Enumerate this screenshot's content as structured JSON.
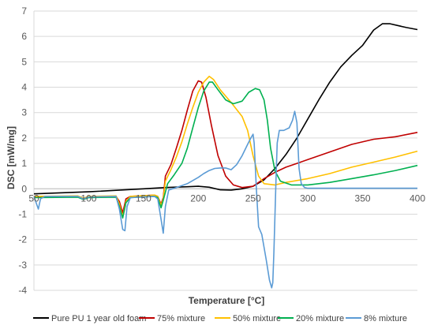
{
  "chart_data": {
    "type": "line",
    "title": "",
    "xlabel": "Temperature [°C]",
    "ylabel": "DSC [mW/mg]",
    "xlim": [
      50,
      400
    ],
    "ylim": [
      -4,
      7
    ],
    "xticks": [
      50,
      100,
      150,
      200,
      250,
      300,
      350,
      400
    ],
    "yticks": [
      -4,
      -3,
      -2,
      -1,
      0,
      1,
      2,
      3,
      4,
      5,
      6,
      7
    ],
    "grid": "horizontal",
    "legend_position": "bottom",
    "series": [
      {
        "name": "Pure PU 1 year old foam",
        "color": "#000000",
        "points": [
          [
            50,
            -0.2
          ],
          [
            100,
            -0.12
          ],
          [
            150,
            0.0
          ],
          [
            170,
            0.05
          ],
          [
            190,
            0.08
          ],
          [
            200,
            0.1
          ],
          [
            210,
            0.06
          ],
          [
            220,
            -0.04
          ],
          [
            230,
            -0.05
          ],
          [
            240,
            0.0
          ],
          [
            250,
            0.1
          ],
          [
            260,
            0.35
          ],
          [
            270,
            0.8
          ],
          [
            280,
            1.35
          ],
          [
            290,
            2.0
          ],
          [
            300,
            2.75
          ],
          [
            310,
            3.5
          ],
          [
            320,
            4.2
          ],
          [
            330,
            4.8
          ],
          [
            340,
            5.25
          ],
          [
            350,
            5.65
          ],
          [
            360,
            6.25
          ],
          [
            368,
            6.5
          ],
          [
            375,
            6.5
          ],
          [
            390,
            6.35
          ],
          [
            400,
            6.27
          ]
        ]
      },
      {
        "name": "75% mixture",
        "color": "#C00000",
        "points": [
          [
            50,
            -0.3
          ],
          [
            55,
            -0.32
          ],
          [
            60,
            -0.3
          ],
          [
            90,
            -0.3
          ],
          [
            95,
            -0.38
          ],
          [
            100,
            -0.32
          ],
          [
            125,
            -0.3
          ],
          [
            128,
            -0.5
          ],
          [
            131,
            -0.95
          ],
          [
            134,
            -0.4
          ],
          [
            138,
            -0.3
          ],
          [
            160,
            -0.25
          ],
          [
            163,
            -0.3
          ],
          [
            166,
            -0.6
          ],
          [
            168,
            -0.35
          ],
          [
            170,
            0.5
          ],
          [
            175,
            0.95
          ],
          [
            180,
            1.6
          ],
          [
            185,
            2.3
          ],
          [
            190,
            3.1
          ],
          [
            195,
            3.85
          ],
          [
            200,
            4.25
          ],
          [
            203,
            4.2
          ],
          [
            207,
            3.6
          ],
          [
            212,
            2.5
          ],
          [
            218,
            1.3
          ],
          [
            225,
            0.5
          ],
          [
            232,
            0.15
          ],
          [
            240,
            0.05
          ],
          [
            250,
            0.1
          ],
          [
            260,
            0.4
          ],
          [
            270,
            0.65
          ],
          [
            280,
            0.85
          ],
          [
            290,
            1.0
          ],
          [
            300,
            1.15
          ],
          [
            320,
            1.45
          ],
          [
            340,
            1.75
          ],
          [
            360,
            1.95
          ],
          [
            380,
            2.05
          ],
          [
            400,
            2.22
          ]
        ]
      },
      {
        "name": "50% mixture",
        "color": "#FFC000",
        "points": [
          [
            50,
            -0.3
          ],
          [
            90,
            -0.28
          ],
          [
            95,
            -0.37
          ],
          [
            100,
            -0.3
          ],
          [
            125,
            -0.28
          ],
          [
            128,
            -0.6
          ],
          [
            131,
            -1.1
          ],
          [
            134,
            -0.5
          ],
          [
            138,
            -0.3
          ],
          [
            160,
            -0.25
          ],
          [
            163,
            -0.3
          ],
          [
            166,
            -0.65
          ],
          [
            168,
            -0.4
          ],
          [
            170,
            0.3
          ],
          [
            175,
            0.75
          ],
          [
            180,
            1.25
          ],
          [
            185,
            1.85
          ],
          [
            190,
            2.55
          ],
          [
            195,
            3.2
          ],
          [
            200,
            3.8
          ],
          [
            205,
            4.2
          ],
          [
            210,
            4.43
          ],
          [
            214,
            4.3
          ],
          [
            220,
            3.9
          ],
          [
            230,
            3.4
          ],
          [
            240,
            2.85
          ],
          [
            245,
            2.3
          ],
          [
            250,
            1.3
          ],
          [
            255,
            0.5
          ],
          [
            260,
            0.2
          ],
          [
            270,
            0.15
          ],
          [
            280,
            0.25
          ],
          [
            300,
            0.4
          ],
          [
            320,
            0.6
          ],
          [
            340,
            0.85
          ],
          [
            360,
            1.05
          ],
          [
            380,
            1.25
          ],
          [
            400,
            1.48
          ]
        ]
      },
      {
        "name": "20% mixture",
        "color": "#00B050",
        "points": [
          [
            50,
            -0.35
          ],
          [
            90,
            -0.33
          ],
          [
            95,
            -0.42
          ],
          [
            100,
            -0.35
          ],
          [
            125,
            -0.33
          ],
          [
            128,
            -0.7
          ],
          [
            131,
            -1.15
          ],
          [
            134,
            -0.55
          ],
          [
            138,
            -0.35
          ],
          [
            160,
            -0.3
          ],
          [
            163,
            -0.35
          ],
          [
            166,
            -0.75
          ],
          [
            168,
            -0.45
          ],
          [
            172,
            0.2
          ],
          [
            178,
            0.55
          ],
          [
            185,
            1.0
          ],
          [
            190,
            1.6
          ],
          [
            195,
            2.4
          ],
          [
            200,
            3.2
          ],
          [
            205,
            3.85
          ],
          [
            210,
            4.2
          ],
          [
            213,
            4.2
          ],
          [
            218,
            3.9
          ],
          [
            225,
            3.5
          ],
          [
            232,
            3.35
          ],
          [
            240,
            3.45
          ],
          [
            246,
            3.8
          ],
          [
            252,
            3.95
          ],
          [
            256,
            3.9
          ],
          [
            260,
            3.5
          ],
          [
            263,
            2.7
          ],
          [
            266,
            1.6
          ],
          [
            270,
            0.7
          ],
          [
            275,
            0.3
          ],
          [
            285,
            0.15
          ],
          [
            300,
            0.15
          ],
          [
            320,
            0.25
          ],
          [
            340,
            0.4
          ],
          [
            360,
            0.55
          ],
          [
            380,
            0.72
          ],
          [
            400,
            0.92
          ]
        ]
      },
      {
        "name": "8% mixture",
        "color": "#5B9BD5",
        "points": [
          [
            50,
            -0.3
          ],
          [
            52,
            -0.55
          ],
          [
            54,
            -0.8
          ],
          [
            56,
            -0.4
          ],
          [
            60,
            -0.3
          ],
          [
            90,
            -0.3
          ],
          [
            95,
            -0.4
          ],
          [
            100,
            -0.32
          ],
          [
            125,
            -0.3
          ],
          [
            128,
            -0.8
          ],
          [
            131,
            -1.6
          ],
          [
            133,
            -1.65
          ],
          [
            135,
            -0.7
          ],
          [
            138,
            -0.35
          ],
          [
            160,
            -0.3
          ],
          [
            163,
            -0.4
          ],
          [
            166,
            -1.2
          ],
          [
            168,
            -1.75
          ],
          [
            170,
            -0.7
          ],
          [
            173,
            -0.05
          ],
          [
            180,
            0.05
          ],
          [
            190,
            0.2
          ],
          [
            200,
            0.45
          ],
          [
            205,
            0.6
          ],
          [
            210,
            0.72
          ],
          [
            215,
            0.8
          ],
          [
            220,
            0.82
          ],
          [
            225,
            0.82
          ],
          [
            230,
            0.75
          ],
          [
            235,
            0.95
          ],
          [
            240,
            1.3
          ],
          [
            245,
            1.75
          ],
          [
            248,
            2.0
          ],
          [
            250,
            2.15
          ],
          [
            251,
            1.8
          ],
          [
            253,
            0.0
          ],
          [
            255,
            -1.5
          ],
          [
            258,
            -1.8
          ],
          [
            262,
            -2.8
          ],
          [
            265,
            -3.6
          ],
          [
            267,
            -3.9
          ],
          [
            268,
            -3.7
          ],
          [
            269,
            -2.5
          ],
          [
            270,
            -1.0
          ],
          [
            271,
            0.5
          ],
          [
            272,
            1.8
          ],
          [
            274,
            2.3
          ],
          [
            278,
            2.3
          ],
          [
            283,
            2.4
          ],
          [
            286,
            2.7
          ],
          [
            288,
            3.05
          ],
          [
            290,
            2.6
          ],
          [
            291,
            1.7
          ],
          [
            292,
            0.8
          ],
          [
            294,
            0.2
          ],
          [
            297,
            0.05
          ],
          [
            300,
            0.02
          ],
          [
            350,
            0.02
          ],
          [
            400,
            0.02
          ]
        ]
      }
    ]
  }
}
